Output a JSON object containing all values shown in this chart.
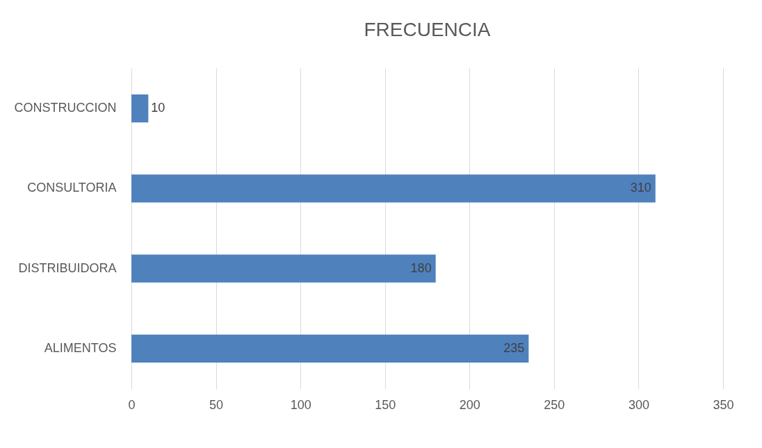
{
  "chart_data": {
    "type": "bar",
    "orientation": "horizontal",
    "title": "FRECUENCIA",
    "categories": [
      "CONSTRUCCION",
      "CONSULTORIA",
      "DISTRIBUIDORA",
      "ALIMENTOS"
    ],
    "values": [
      10,
      310,
      180,
      235
    ],
    "color": "#4f81bd",
    "xlim": [
      0,
      350
    ],
    "xticks": [
      0,
      50,
      100,
      150,
      200,
      250,
      300,
      350
    ],
    "grid": "x",
    "data_labels": true
  }
}
